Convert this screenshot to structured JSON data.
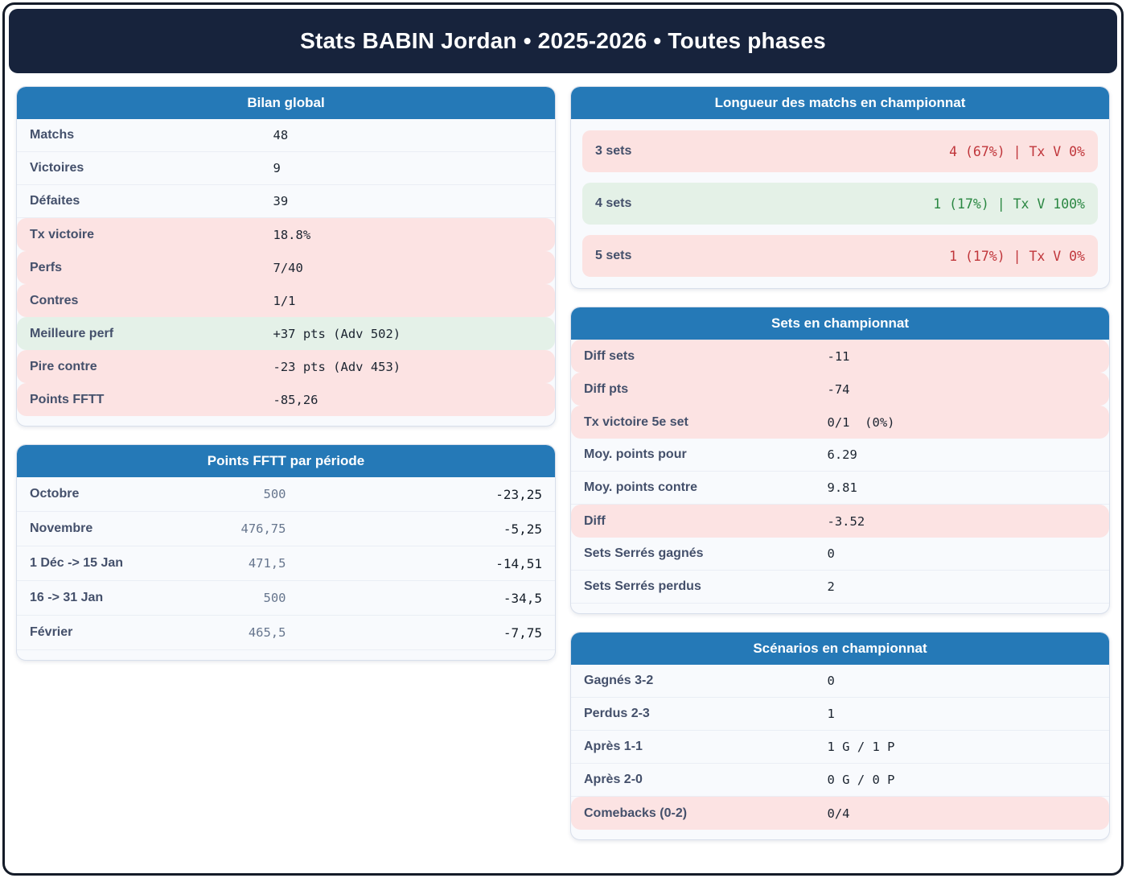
{
  "page": {
    "title": "Stats BABIN Jordan • 2025-2026 • Toutes phases"
  },
  "colors": {
    "titlebar_navy": "#17233c",
    "card_header_blue": "#2579b7",
    "negative_bg": "#fce3e3",
    "positive_bg": "#e4f1e8",
    "negative_text": "#c0363b",
    "positive_text": "#2a8742",
    "label_text": "#44506b"
  },
  "cards": {
    "bilan": {
      "title": "Bilan global",
      "rows": [
        {
          "label": "Matchs",
          "value": "48",
          "tone": "plain"
        },
        {
          "label": "Victoires",
          "value": "9",
          "tone": "plain"
        },
        {
          "label": "Défaites",
          "value": "39",
          "tone": "plain"
        },
        {
          "label": "Tx victoire",
          "value": "18.8%",
          "tone": "bad"
        },
        {
          "label": "Perfs",
          "value": "7/40",
          "tone": "bad"
        },
        {
          "label": "Contres",
          "value": "1/1",
          "tone": "bad"
        },
        {
          "label": "Meilleure perf",
          "value": "+37 pts (Adv 502)",
          "tone": "good"
        },
        {
          "label": "Pire contre",
          "value": "-23 pts (Adv 453)",
          "tone": "bad"
        },
        {
          "label": "Points FFTT",
          "value": "-85,26",
          "tone": "bad"
        }
      ]
    },
    "points_periode": {
      "title": "Points FFTT par période",
      "rows": [
        {
          "label": "Octobre",
          "mid": "500",
          "right": "-23,25"
        },
        {
          "label": "Novembre",
          "mid": "476,75",
          "right": "-5,25"
        },
        {
          "label": "1 Déc -> 15 Jan",
          "mid": "471,5",
          "right": "-14,51"
        },
        {
          "label": "16 -> 31 Jan",
          "mid": "500",
          "right": "-34,5"
        },
        {
          "label": "Février",
          "mid": "465,5",
          "right": "-7,75"
        }
      ]
    },
    "longueur": {
      "title": "Longueur des matchs en championnat",
      "rows": [
        {
          "label": "3 sets",
          "value": "4 (67%) | Tx V 0%",
          "tone": "bad"
        },
        {
          "label": "4 sets",
          "value": "1 (17%) | Tx V 100%",
          "tone": "good"
        },
        {
          "label": "5 sets",
          "value": "1 (17%) | Tx V 0%",
          "tone": "bad"
        }
      ]
    },
    "sets": {
      "title": "Sets en championnat",
      "rows": [
        {
          "label": "Diff sets",
          "value": "-11",
          "tone": "bad"
        },
        {
          "label": "Diff pts",
          "value": "-74",
          "tone": "bad"
        },
        {
          "label": "Tx victoire 5e set",
          "value": "0/1  (0%)",
          "tone": "bad"
        },
        {
          "label": "Moy. points pour",
          "value": "6.29",
          "tone": "plain"
        },
        {
          "label": "Moy. points contre",
          "value": "9.81",
          "tone": "plain"
        },
        {
          "label": "Diff",
          "value": "-3.52",
          "tone": "bad"
        },
        {
          "label": "Sets Serrés gagnés",
          "value": "0",
          "tone": "plain"
        },
        {
          "label": "Sets Serrés perdus",
          "value": "2",
          "tone": "plain"
        }
      ]
    },
    "scenarios": {
      "title": "Scénarios en championnat",
      "rows": [
        {
          "label": "Gagnés 3-2",
          "value": "0",
          "tone": "plain"
        },
        {
          "label": "Perdus 2-3",
          "value": "1",
          "tone": "plain"
        },
        {
          "label": "Après 1-1",
          "value": "1 G / 1 P",
          "tone": "plain"
        },
        {
          "label": "Après 2-0",
          "value": "0 G / 0 P",
          "tone": "plain"
        },
        {
          "label": "Comebacks (0-2)",
          "value": "0/4",
          "tone": "bad"
        }
      ]
    }
  }
}
